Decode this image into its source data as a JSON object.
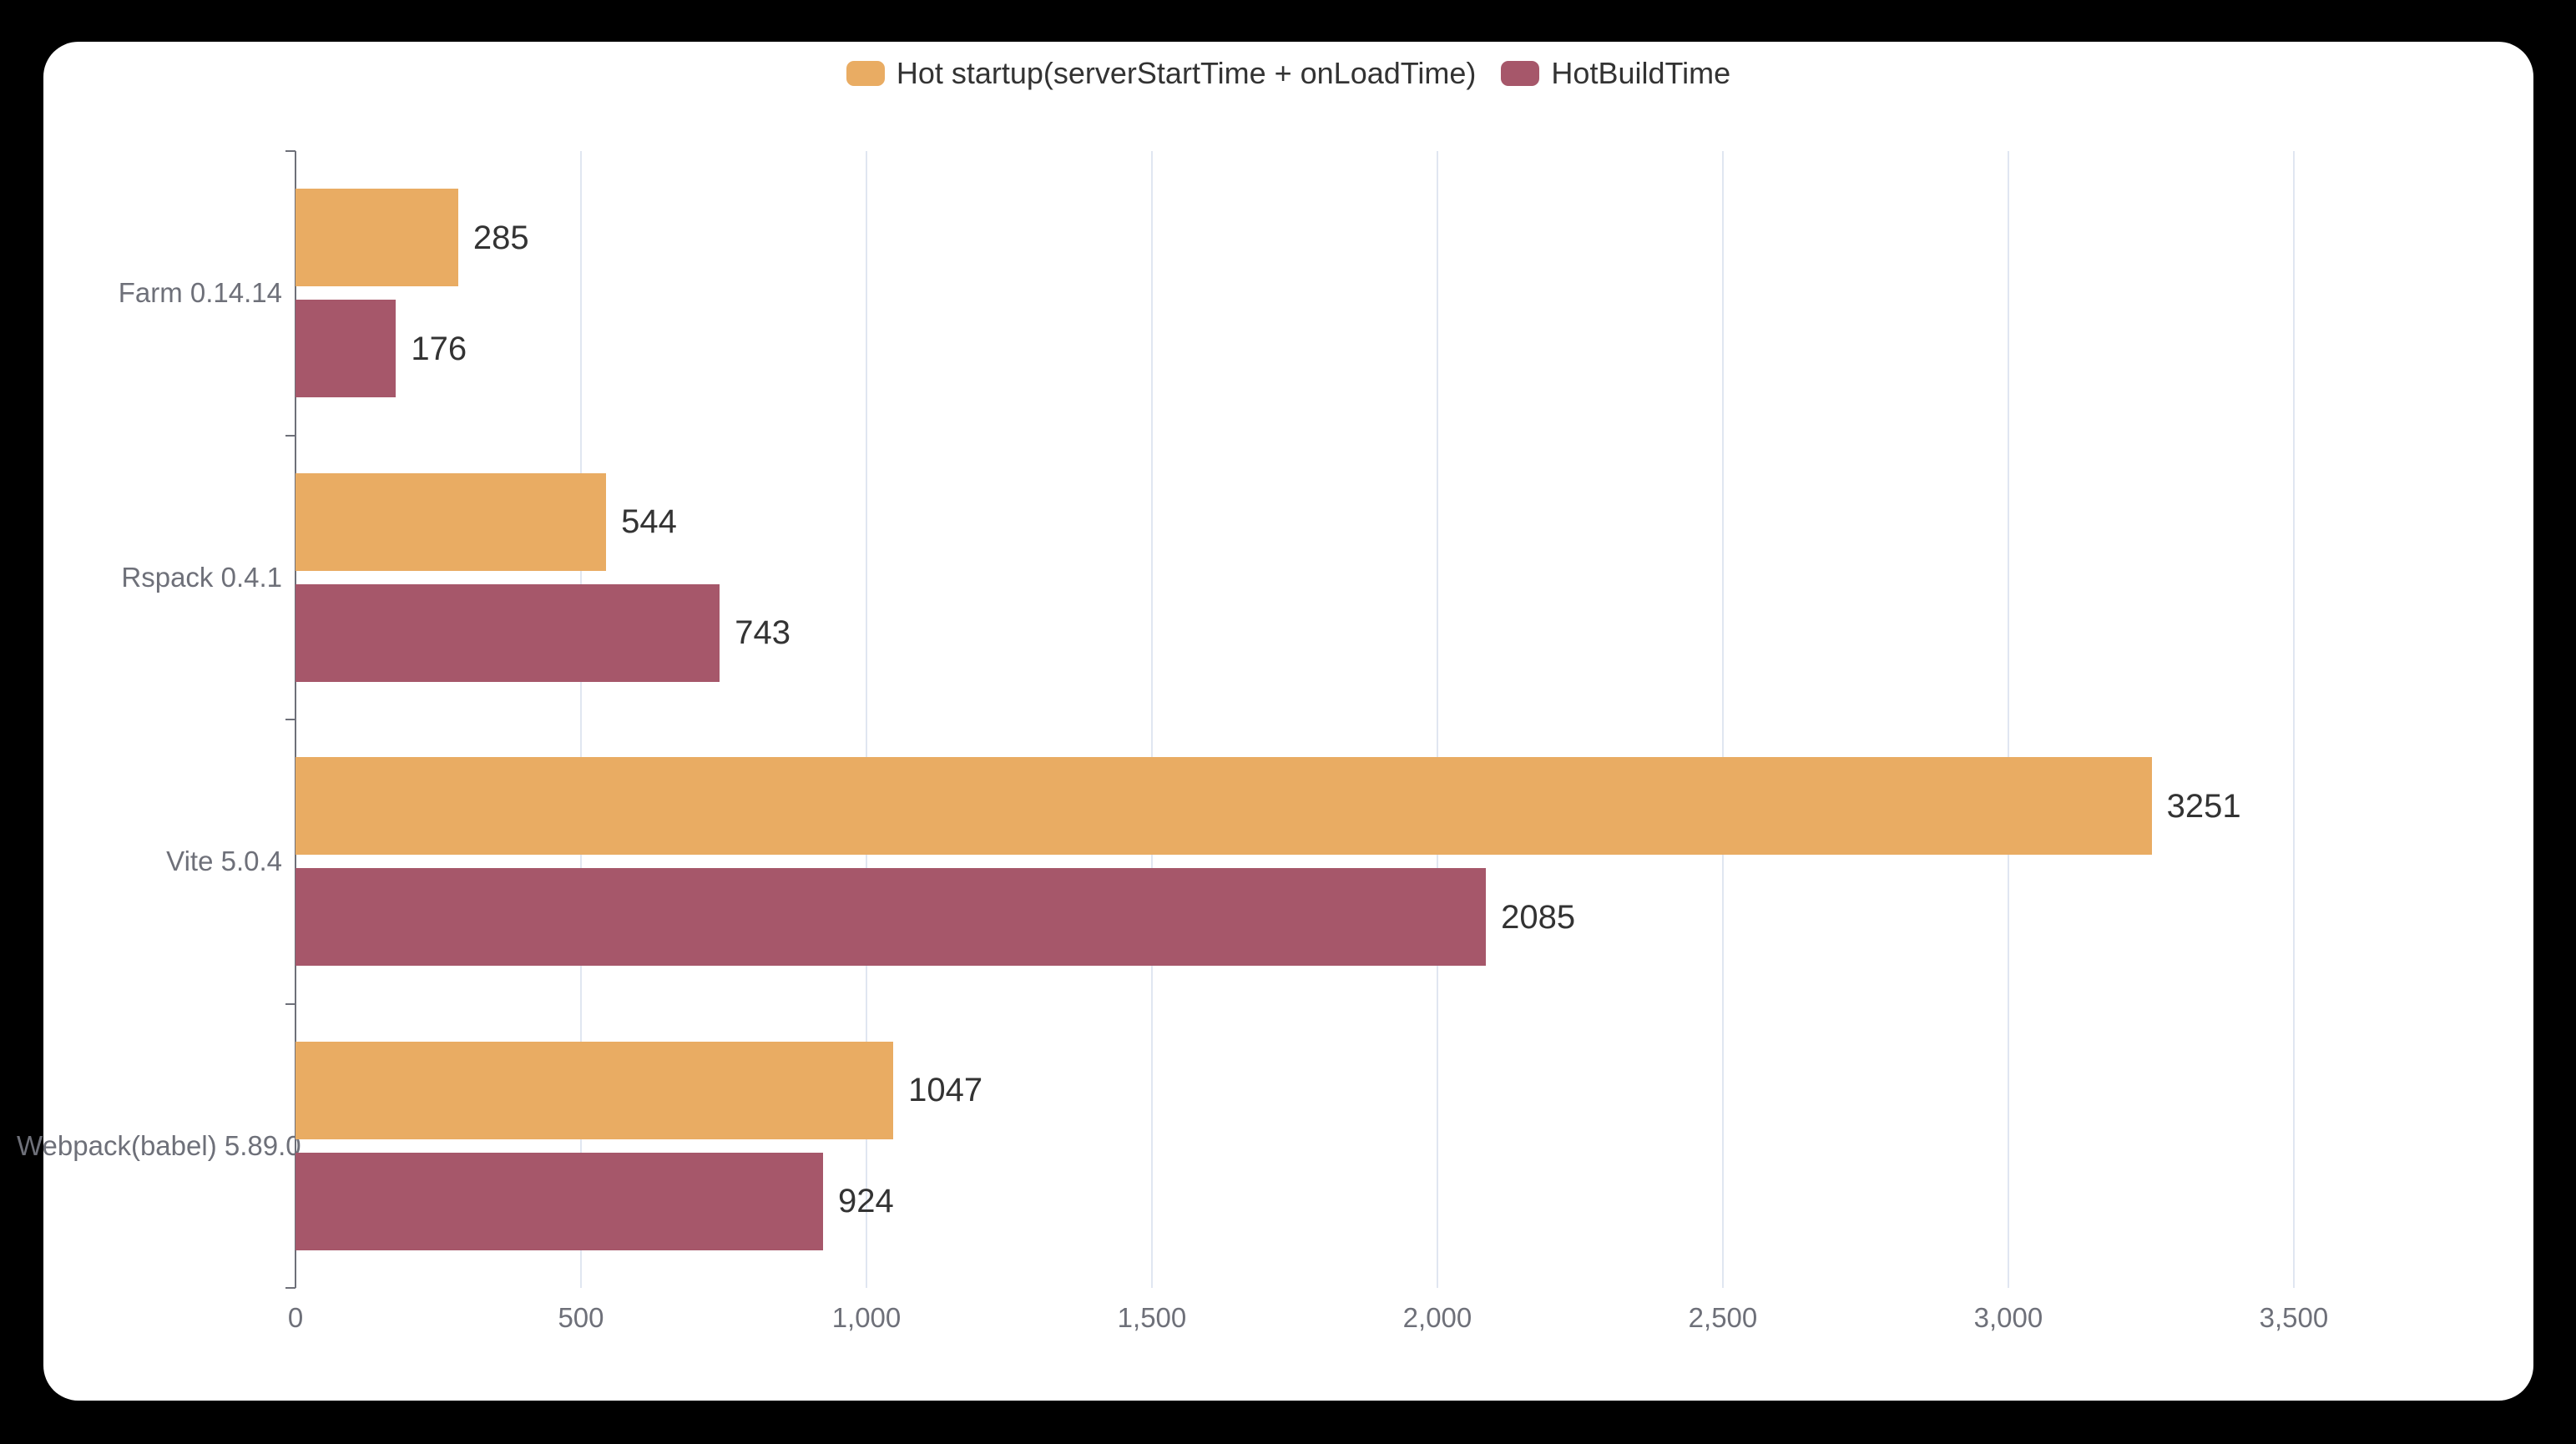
{
  "legend": {
    "items": [
      {
        "id": "hot-startup",
        "label": "Hot startup(serverStartTime + onLoadTime)",
        "color": "#E9AC63"
      },
      {
        "id": "hot-build-time",
        "label": "HotBuildTime",
        "color": "#A6576A"
      }
    ]
  },
  "chart_data": {
    "type": "bar",
    "orientation": "horizontal",
    "title": "",
    "xlabel": "",
    "ylabel": "",
    "categories": [
      "Farm 0.14.14",
      "Rspack 0.4.1",
      "Vite 5.0.4",
      "Webpack(babel) 5.89.0"
    ],
    "series": [
      {
        "name": "Hot startup(serverStartTime + onLoadTime)",
        "color": "#E9AC63",
        "values": [
          285,
          544,
          3251,
          1047
        ]
      },
      {
        "name": "HotBuildTime",
        "color": "#A6576A",
        "values": [
          176,
          743,
          2085,
          924
        ]
      }
    ],
    "value_labels_shown": true,
    "x_axis": {
      "tick_values": [
        0,
        500,
        1000,
        1500,
        2000,
        2500,
        3000,
        3500
      ],
      "tick_labels": [
        "0",
        "500",
        "1,000",
        "1,500",
        "2,000",
        "2,500",
        "3,000",
        "3,500"
      ],
      "max": 3810
    },
    "grid": true,
    "legend_position": "top-center",
    "colors": {
      "axis": "#6E7079",
      "gridline": "#E0E6F1",
      "category_label": "#6E7079",
      "tick_label": "#6E7079",
      "value_label": "#333333",
      "card_background": "#FFFFFF",
      "page_background": "#000000"
    }
  }
}
